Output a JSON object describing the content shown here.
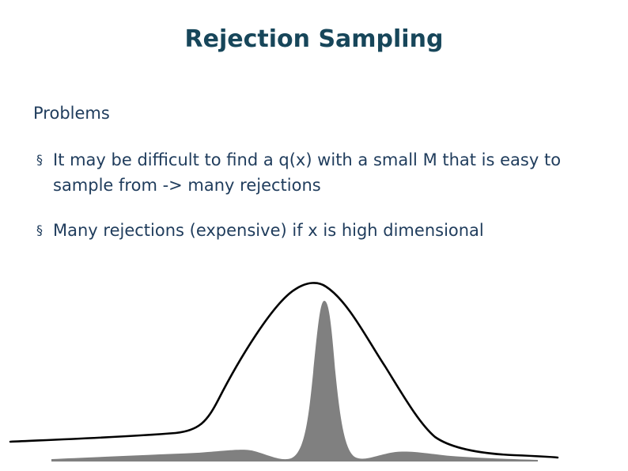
{
  "slide": {
    "title": "Rejection Sampling",
    "section_heading": "Problems",
    "bullets": [
      {
        "marker": "§",
        "text": "It may be difficult to find a q(x) with a small M that is easy to sample from -> many rejections"
      },
      {
        "marker": "§",
        "text": "Many rejections (expensive) if x is high dimensional"
      }
    ]
  },
  "figure": {
    "target_density_color": "#808080",
    "proposal_curve_color": "#000000"
  }
}
